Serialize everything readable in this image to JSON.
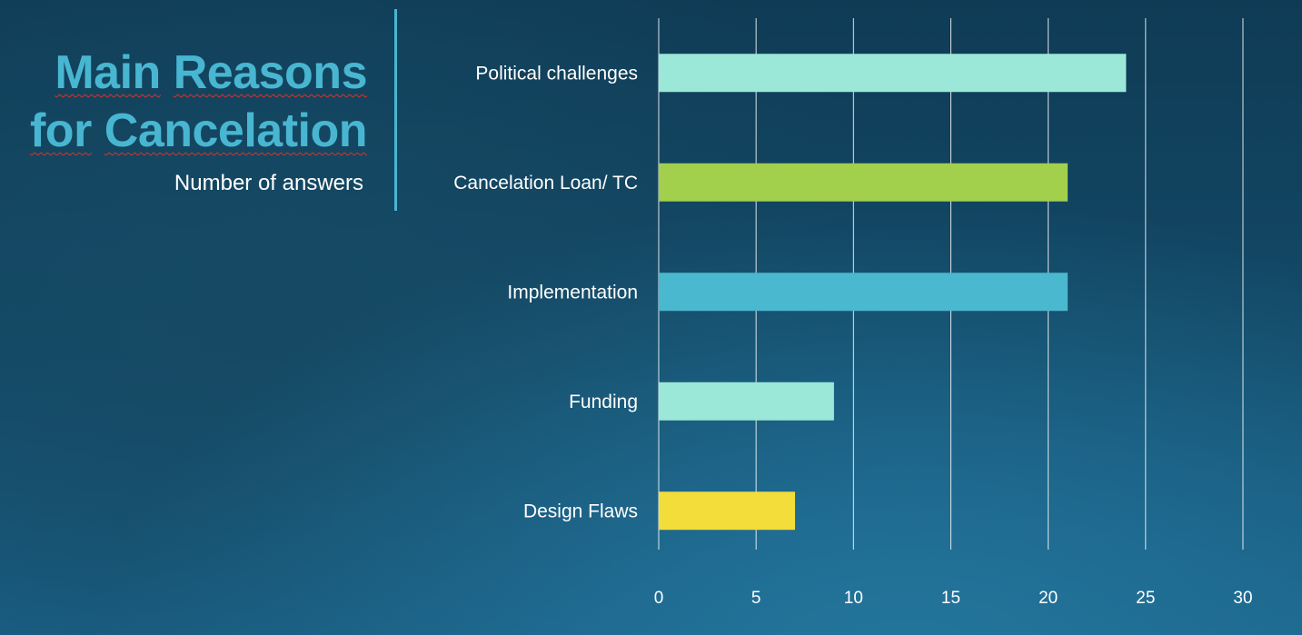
{
  "slide": {
    "title_line1_word1": "Main",
    "title_line1_word2": "Reasons",
    "title_line2_word1": "for",
    "title_line2_word2": "Cancelation",
    "subtitle": "Number of answers"
  },
  "colors": {
    "title": "#49b6d1",
    "divider": "#49b6d1",
    "gridline": "#ffffff",
    "text": "#ffffff"
  },
  "chart_data": {
    "type": "bar",
    "orientation": "horizontal",
    "categories": [
      "Political challenges",
      "Cancelation Loan/ TC",
      "Implementation",
      "Funding",
      "Design Flaws"
    ],
    "values": [
      24,
      21,
      21,
      9,
      7
    ],
    "bar_colors": [
      "#9be8d8",
      "#a2cf4c",
      "#4ab8cf",
      "#9be8d8",
      "#f2dd3a"
    ],
    "xlim": [
      0,
      30
    ],
    "xticks": [
      0,
      5,
      10,
      15,
      20,
      25,
      30
    ],
    "grid": "vertical",
    "title": "",
    "xlabel": "",
    "ylabel": "",
    "legend": "none"
  }
}
